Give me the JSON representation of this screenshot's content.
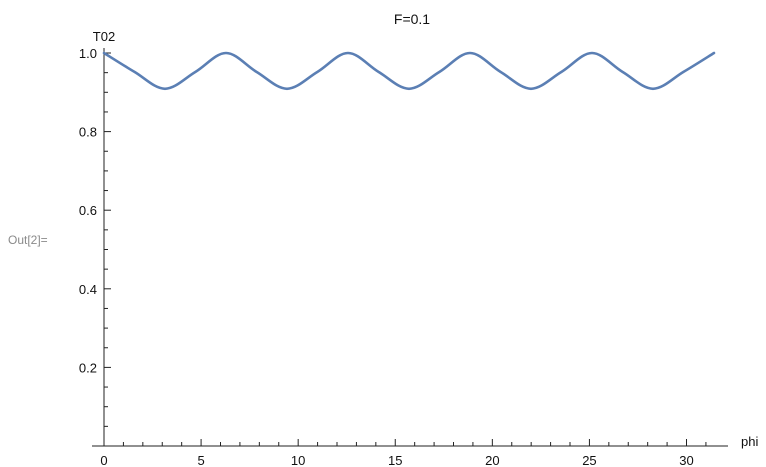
{
  "cell": {
    "out_label": "Out[2]="
  },
  "chart_data": {
    "type": "line",
    "title": "F=0.1",
    "xlabel": "phi",
    "ylabel": "T02",
    "xlim": [
      0,
      31.4159
    ],
    "ylim": [
      0,
      1.0
    ],
    "x_ticks": [
      0,
      5,
      10,
      15,
      20,
      25,
      30
    ],
    "y_ticks": [
      0.2,
      0.4,
      0.6,
      0.8,
      1.0
    ],
    "x_tick_labels": [
      "0",
      "5",
      "10",
      "15",
      "20",
      "25",
      "30"
    ],
    "y_tick_labels": [
      "0.2",
      "0.4",
      "0.6",
      "0.8",
      "1.0"
    ],
    "series": [
      {
        "color": "#5b7fb4",
        "x": [
          0,
          1.5708,
          3.1416,
          4.7124,
          6.2832,
          7.854,
          9.4248,
          10.9956,
          12.5664,
          14.1372,
          15.708,
          17.2788,
          18.8496,
          20.4204,
          21.9911,
          23.5619,
          25.1327,
          26.7035,
          28.2743,
          29.8451,
          31.4159
        ],
        "y": [
          1.0,
          0.952,
          0.909,
          0.952,
          1.0,
          0.952,
          0.909,
          0.952,
          1.0,
          0.952,
          0.909,
          0.952,
          1.0,
          0.952,
          0.909,
          0.952,
          1.0,
          0.952,
          0.909,
          0.952,
          1.0
        ]
      }
    ],
    "grid": false
  }
}
